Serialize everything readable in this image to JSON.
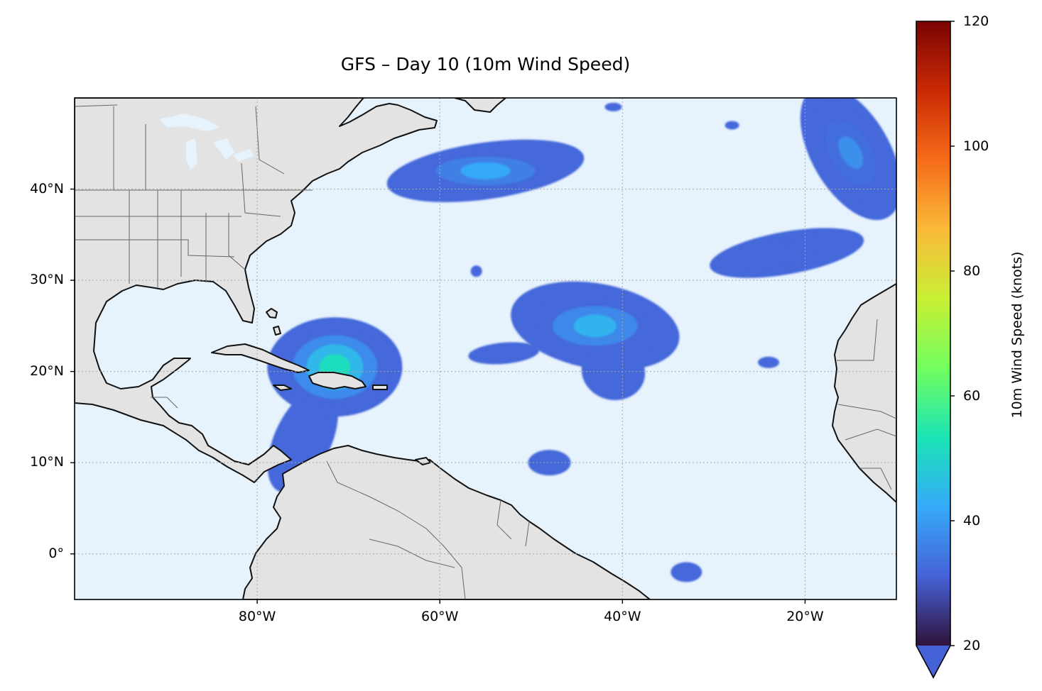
{
  "title": "GFS – Day 10 (10m Wind Speed)",
  "map": {
    "extent": {
      "lon_min": -100,
      "lon_max": -10,
      "lat_min": -5,
      "lat_max": 50
    },
    "gridlines": true,
    "ocean_color": "#e6f2fc",
    "land_color": "#e3e3e3",
    "coastline_color": "#111111",
    "border_color": "#666666"
  },
  "axes": {
    "lat_ticks": [
      {
        "value": 40,
        "label": "40°N"
      },
      {
        "value": 30,
        "label": "30°N"
      },
      {
        "value": 20,
        "label": "20°N"
      },
      {
        "value": 10,
        "label": "10°N"
      },
      {
        "value": 0,
        "label": "0°"
      }
    ],
    "lon_ticks": [
      {
        "value": -80,
        "label": "80°W"
      },
      {
        "value": -60,
        "label": "60°W"
      },
      {
        "value": -40,
        "label": "40°W"
      },
      {
        "value": -20,
        "label": "20°W"
      }
    ]
  },
  "colorbar": {
    "label": "10m Wind Speed (knots)",
    "min": 20,
    "max": 120,
    "extend": "min",
    "colormap": "turbo",
    "ticks": [
      {
        "value": 120,
        "label": "120"
      },
      {
        "value": 100,
        "label": "100"
      },
      {
        "value": 80,
        "label": "80"
      },
      {
        "value": 60,
        "label": "60"
      },
      {
        "value": 40,
        "label": "40"
      },
      {
        "value": 20,
        "label": "20"
      }
    ],
    "stops": [
      "#30123b",
      "#4662d7",
      "#36aaf9",
      "#1ae4b6",
      "#72fe5e",
      "#c8ef34",
      "#faba39",
      "#f66b19",
      "#ca2a04",
      "#7a0403"
    ]
  },
  "wind_regions": [
    {
      "name": "caribbean-storm",
      "lon": -71.5,
      "lat": 20.5,
      "peak": 52
    },
    {
      "name": "central-atlantic-system",
      "lon": -43,
      "lat": 25,
      "peak": 44
    },
    {
      "name": "newfoundland-system",
      "lon": -55,
      "lat": 42,
      "peak": 42
    },
    {
      "name": "iberia-system",
      "lon": -15,
      "lat": 44,
      "peak": 38
    },
    {
      "name": "east-atlantic-band",
      "lon": -22,
      "lat": 33,
      "peak": 32
    }
  ]
}
